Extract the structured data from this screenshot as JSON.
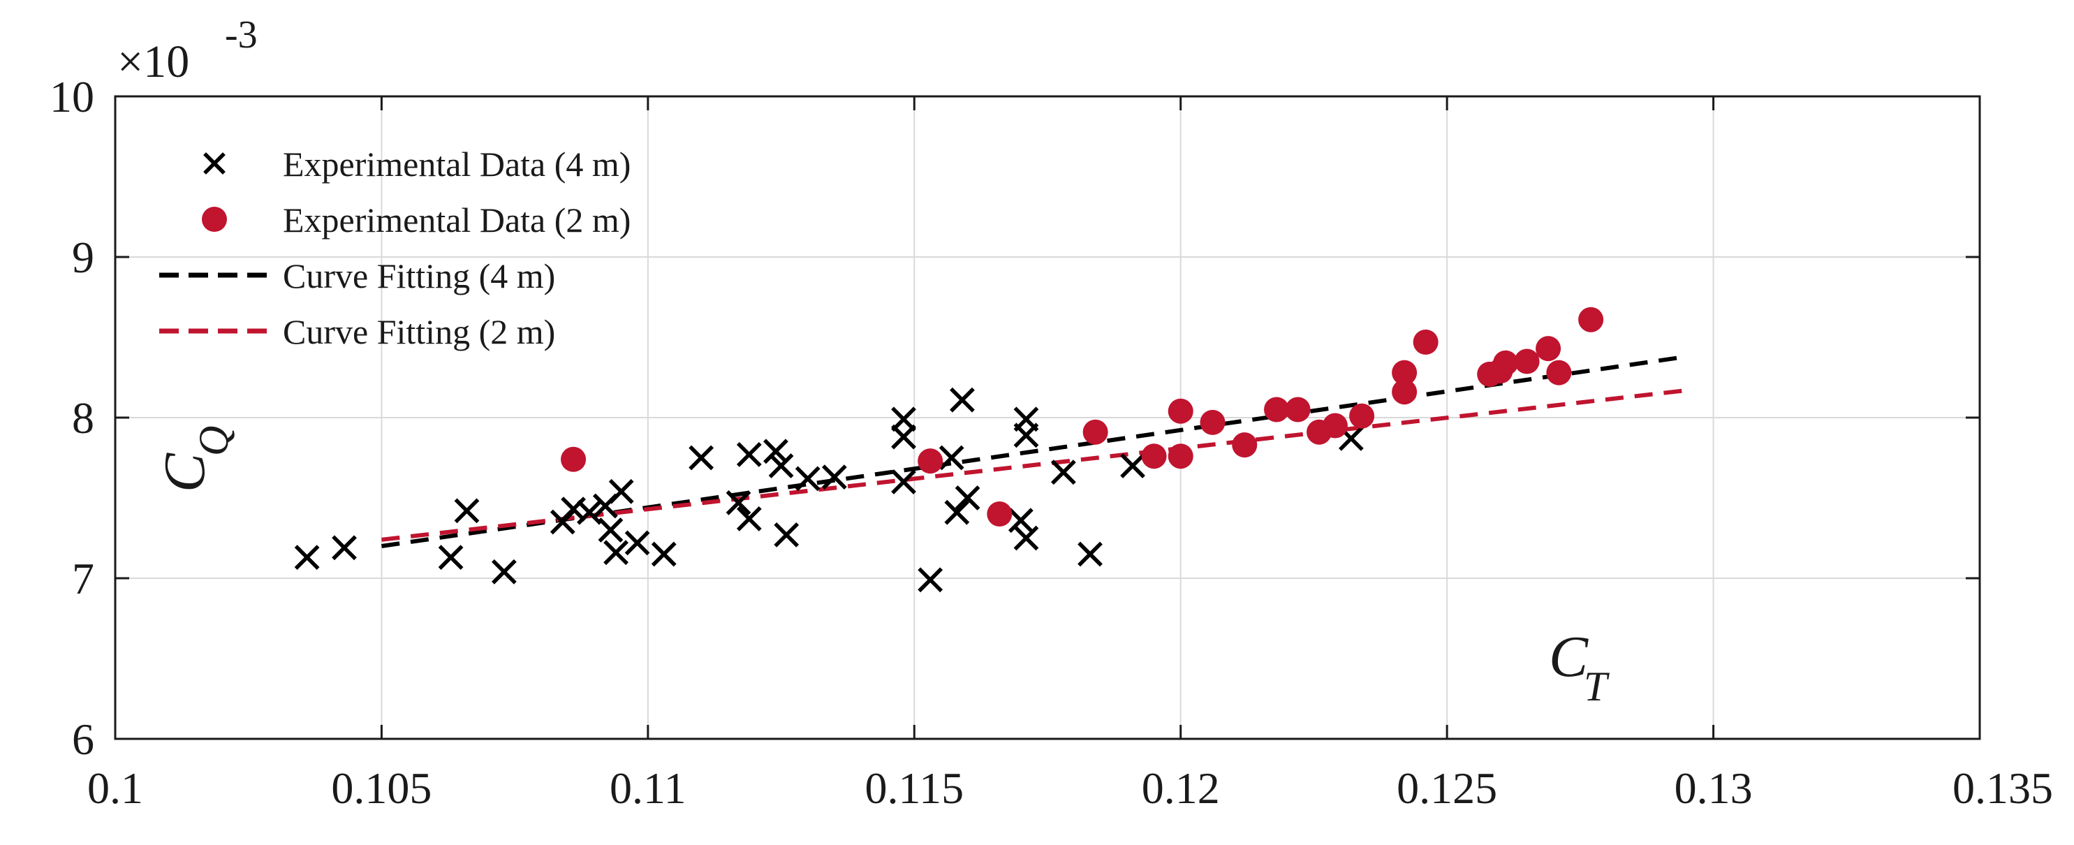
{
  "chart_data": {
    "type": "scatter",
    "x_axis": {
      "label_main": "C",
      "label_sub": "T",
      "lim": [
        0.1,
        0.135
      ],
      "ticks": [
        0.1,
        0.105,
        0.11,
        0.115,
        0.12,
        0.125,
        0.13,
        0.135
      ],
      "tick_labels": [
        "0.1",
        "0.105",
        "0.11",
        "0.115",
        "0.12",
        "0.125",
        "0.13",
        "0.135"
      ]
    },
    "y_axis": {
      "label_main": "C",
      "label_sub": "Q",
      "lim": [
        6,
        10
      ],
      "ticks": [
        6,
        7,
        8,
        9,
        10
      ],
      "tick_labels": [
        "6",
        "7",
        "8",
        "9",
        "10"
      ],
      "exponent_label": "×10",
      "exponent_power": "-3"
    },
    "grid": true,
    "legend_placement": "top-left",
    "series": [
      {
        "name": "Experimental Data (4 m)",
        "kind": "marker",
        "marker": "x",
        "color": "#000000",
        "points": [
          [
            0.1036,
            7.13
          ],
          [
            0.1043,
            7.19
          ],
          [
            0.1063,
            7.13
          ],
          [
            0.1066,
            7.42
          ],
          [
            0.1073,
            7.04
          ],
          [
            0.1084,
            7.35
          ],
          [
            0.1086,
            7.43
          ],
          [
            0.1089,
            7.41
          ],
          [
            0.1092,
            7.45
          ],
          [
            0.1093,
            7.3
          ],
          [
            0.1094,
            7.16
          ],
          [
            0.1095,
            7.54
          ],
          [
            0.1098,
            7.22
          ],
          [
            0.1103,
            7.15
          ],
          [
            0.111,
            7.75
          ],
          [
            0.1117,
            7.47
          ],
          [
            0.1119,
            7.37
          ],
          [
            0.1119,
            7.77
          ],
          [
            0.1124,
            7.79
          ],
          [
            0.1125,
            7.7
          ],
          [
            0.1126,
            7.27
          ],
          [
            0.113,
            7.62
          ],
          [
            0.1135,
            7.63
          ],
          [
            0.1148,
            7.99
          ],
          [
            0.1148,
            7.88
          ],
          [
            0.1148,
            7.6
          ],
          [
            0.1153,
            6.99
          ],
          [
            0.1157,
            7.75
          ],
          [
            0.1158,
            7.41
          ],
          [
            0.1159,
            8.11
          ],
          [
            0.116,
            7.5
          ],
          [
            0.117,
            7.36
          ],
          [
            0.1171,
            7.25
          ],
          [
            0.1171,
            7.99
          ],
          [
            0.1171,
            7.89
          ],
          [
            0.1178,
            7.66
          ],
          [
            0.1183,
            7.15
          ],
          [
            0.1191,
            7.7
          ],
          [
            0.1232,
            7.87
          ]
        ]
      },
      {
        "name": "Experimental Data (2 m)",
        "kind": "marker",
        "marker": "circle",
        "color": "#c0142f",
        "points": [
          [
            0.1086,
            7.74
          ],
          [
            0.1153,
            7.73
          ],
          [
            0.1166,
            7.4
          ],
          [
            0.1184,
            7.91
          ],
          [
            0.1195,
            7.76
          ],
          [
            0.12,
            8.04
          ],
          [
            0.12,
            7.76
          ],
          [
            0.1206,
            7.97
          ],
          [
            0.1212,
            7.83
          ],
          [
            0.1218,
            8.05
          ],
          [
            0.1222,
            8.05
          ],
          [
            0.1226,
            7.91
          ],
          [
            0.1229,
            7.95
          ],
          [
            0.1234,
            8.01
          ],
          [
            0.1242,
            8.28
          ],
          [
            0.1242,
            8.16
          ],
          [
            0.1246,
            8.47
          ],
          [
            0.1258,
            8.27
          ],
          [
            0.126,
            8.29
          ],
          [
            0.1261,
            8.34
          ],
          [
            0.1265,
            8.35
          ],
          [
            0.1269,
            8.43
          ],
          [
            0.1271,
            8.28
          ],
          [
            0.1277,
            8.61
          ]
        ]
      },
      {
        "name": "Curve Fitting (4 m)",
        "kind": "line",
        "dash": true,
        "color": "#000000",
        "points": [
          [
            0.105,
            7.2
          ],
          [
            0.1295,
            8.38
          ]
        ]
      },
      {
        "name": "Curve Fitting (2 m)",
        "kind": "line",
        "dash": true,
        "color": "#c0142f",
        "points": [
          [
            0.105,
            7.24
          ],
          [
            0.1295,
            8.17
          ]
        ]
      }
    ]
  }
}
